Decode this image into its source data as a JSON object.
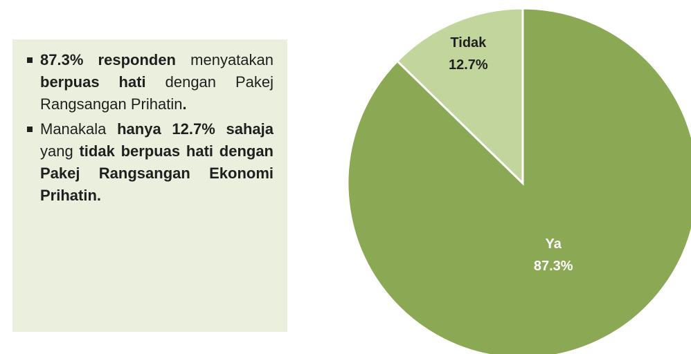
{
  "text_box": {
    "bullets": [
      [
        {
          "text": "87.3% responden",
          "bold": true
        },
        {
          "text": " menyatakan ",
          "bold": false
        },
        {
          "text": "berpuas hati",
          "bold": true
        },
        {
          "text": " dengan Pakej Rangsangan Prihatin",
          "bold": false
        },
        {
          "text": ".",
          "bold": true
        }
      ],
      [
        {
          "text": "Manakala ",
          "bold": false
        },
        {
          "text": "hanya 12.7% sahaja",
          "bold": true
        },
        {
          "text": " yang ",
          "bold": false
        },
        {
          "text": "tidak berpuas hati dengan Pakej Rangsangan Ekonomi Prihatin.",
          "bold": true
        }
      ]
    ]
  },
  "chart_data": {
    "type": "pie",
    "categories": [
      "Ya",
      "Tidak"
    ],
    "values": [
      87.3,
      12.7
    ],
    "value_labels": [
      "87.3%",
      "12.7%"
    ],
    "colors": [
      "#8ba855",
      "#c1d59c"
    ],
    "label_colors": [
      "#ffffff",
      "#1f1f1f"
    ]
  }
}
